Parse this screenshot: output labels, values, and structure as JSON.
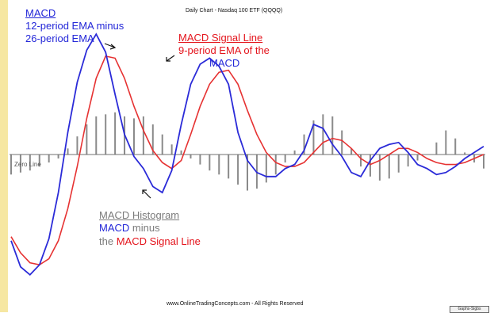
{
  "chart_data": {
    "type": "line",
    "title": "Daily Chart - Nasdaq 100 ETF (QQQQ)",
    "zero_line_label": "Zero Line",
    "x": [
      0,
      4,
      8,
      12,
      16,
      20,
      24,
      28,
      32,
      36,
      40,
      44,
      48,
      52,
      56,
      60,
      64,
      68,
      72,
      76,
      80,
      84,
      88,
      92,
      96,
      100,
      104,
      108,
      112,
      116,
      120,
      124,
      128,
      132,
      136,
      140,
      144,
      148,
      152,
      156,
      160,
      164,
      168,
      172,
      176,
      180,
      184,
      188,
      192,
      196,
      200
    ],
    "ylim": [
      -3.3,
      3.1
    ],
    "grid": false,
    "legend": "none",
    "series": [
      {
        "name": "MACD",
        "color": "#2b2bd8",
        "values": [
          -2.15,
          -2.8,
          -3.0,
          -2.75,
          -2.1,
          -0.95,
          0.55,
          1.8,
          2.6,
          3.0,
          2.55,
          1.5,
          0.5,
          -0.05,
          -0.35,
          -0.8,
          -0.95,
          -0.4,
          0.75,
          1.75,
          2.25,
          2.4,
          2.2,
          1.75,
          0.55,
          -0.15,
          -0.45,
          -0.55,
          -0.55,
          -0.35,
          -0.25,
          0.1,
          0.75,
          0.65,
          0.25,
          -0.05,
          -0.45,
          -0.55,
          -0.15,
          0.15,
          0.25,
          0.3,
          0.05,
          -0.25,
          -0.35,
          -0.5,
          -0.45,
          -0.3,
          -0.1,
          0.05,
          0.2
        ]
      },
      {
        "name": "MACD Signal Line",
        "color": "#e63232",
        "values": [
          -2.05,
          -2.45,
          -2.7,
          -2.75,
          -2.6,
          -2.15,
          -1.35,
          -0.3,
          0.9,
          1.9,
          2.45,
          2.4,
          1.9,
          1.2,
          0.6,
          0.1,
          -0.2,
          -0.35,
          -0.15,
          0.5,
          1.2,
          1.75,
          2.05,
          2.1,
          1.75,
          1.1,
          0.5,
          0.05,
          -0.2,
          -0.3,
          -0.3,
          -0.2,
          0.05,
          0.3,
          0.4,
          0.35,
          0.15,
          -0.1,
          -0.25,
          -0.15,
          0.0,
          0.15,
          0.15,
          0.05,
          -0.1,
          -0.2,
          -0.25,
          -0.25,
          -0.2,
          -0.1,
          0.0
        ]
      },
      {
        "name": "MACD Histogram",
        "color": "#8a8a8a",
        "type": "bar",
        "values": [
          -0.5,
          -0.45,
          -0.4,
          -0.3,
          -0.2,
          -0.1,
          0.15,
          0.45,
          0.75,
          0.95,
          1.0,
          1.05,
          0.95,
          0.9,
          0.95,
          0.75,
          0.5,
          0.25,
          0.1,
          -0.1,
          -0.25,
          -0.4,
          -0.5,
          -0.6,
          -0.75,
          -0.9,
          -0.85,
          -0.7,
          -0.5,
          -0.2,
          0.1,
          0.5,
          0.85,
          1.0,
          0.95,
          0.6,
          0.15,
          -0.3,
          -0.55,
          -0.65,
          -0.6,
          -0.45,
          -0.3,
          -0.15,
          0.0,
          0.3,
          0.6,
          0.4,
          0.05,
          -0.2,
          -0.35
        ]
      }
    ]
  },
  "annotations": {
    "macd": {
      "heading": "MACD",
      "line1": "12-period EMA minus",
      "line2": "26-period EMA"
    },
    "signal": {
      "heading": "MACD Signal Line",
      "line1": "9-period EMA of the",
      "line2": "MACD"
    },
    "histogram": {
      "heading": "MACD Histogram",
      "line1_a": "MACD",
      "line1_b": " minus",
      "line2_a": "the ",
      "line2_b": "MACD Signal Line"
    }
  },
  "footer": {
    "text": "www.OnlineTradingConcepts.com - All Rights Reserved",
    "corner_tag": "Gaphs-Sigbs"
  }
}
